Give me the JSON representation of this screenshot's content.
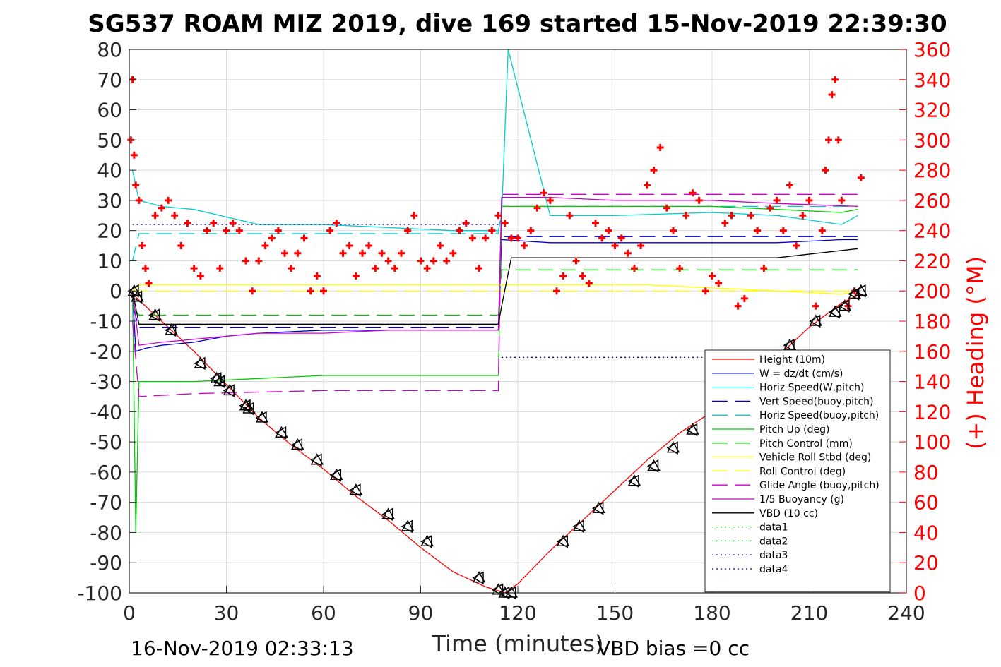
{
  "chart_data": {
    "type": "line",
    "title": "SG537 ROAM MIZ 2019, dive 169 started 15-Nov-2019 22:39:30",
    "xlabel": "Time (minutes)",
    "ylabel_right": "(+) Heading (°M)",
    "xlim": [
      0,
      240
    ],
    "ylim": [
      -100,
      80
    ],
    "ylim_right": [
      0,
      360
    ],
    "xticks": [
      "0",
      "30",
      "60",
      "90",
      "120",
      "150",
      "180",
      "210",
      "240"
    ],
    "yticks": [
      "80",
      "70",
      "60",
      "50",
      "40",
      "30",
      "20",
      "10",
      "0",
      "-10",
      "-20",
      "-30",
      "-40",
      "-50",
      "-60",
      "-70",
      "-80",
      "-90",
      "-100"
    ],
    "yticks_right": [
      "360",
      "340",
      "320",
      "300",
      "280",
      "260",
      "240",
      "220",
      "200",
      "180",
      "160",
      "140",
      "120",
      "100",
      "80",
      "60",
      "40",
      "20",
      "0"
    ],
    "footer_left": "16-Nov-2019 02:33:13",
    "footer_right": "VBD bias =0 cc",
    "grid": true,
    "legend_position": "bottom-right",
    "series": [
      {
        "name": "Height (10m)",
        "color": "#ff0000",
        "style": "solid",
        "x": [
          0,
          2,
          10,
          20,
          30,
          40,
          50,
          60,
          70,
          80,
          90,
          100,
          110,
          116,
          120,
          130,
          140,
          150,
          160,
          170,
          180,
          190,
          200,
          210,
          220,
          226
        ],
        "y": [
          0,
          -2,
          -10,
          -20,
          -31,
          -42,
          -51,
          -59,
          -68,
          -76,
          -85,
          -93,
          -98,
          -100,
          -97,
          -86,
          -76,
          -66,
          -56,
          -47,
          -40,
          -31,
          -22,
          -12,
          -4,
          -1
        ]
      },
      {
        "name": "W = dz/dt (cm/s)",
        "color": "#0000cc",
        "style": "solid",
        "x": [
          1,
          2,
          5,
          10,
          20,
          30,
          40,
          60,
          80,
          100,
          114,
          115,
          130,
          150,
          180,
          200,
          220,
          225
        ],
        "y": [
          0,
          -20,
          -19,
          -18,
          -17,
          -15,
          -14,
          -13,
          -13,
          -13,
          -13,
          17,
          16,
          16,
          16,
          16,
          17,
          17
        ]
      },
      {
        "name": "Horiz Speed(W,pitch)",
        "color": "#00cccc",
        "style": "solid",
        "x": [
          1,
          3,
          10,
          20,
          40,
          60,
          80,
          100,
          114,
          115,
          117,
          130,
          150,
          180,
          200,
          220,
          225
        ],
        "y": [
          40,
          30,
          28,
          27,
          22,
          22,
          21,
          20,
          20,
          25,
          80,
          25,
          25,
          26,
          25,
          22,
          25
        ]
      },
      {
        "name": "Vert Speed(buoy,pitch)",
        "color": "#0000cc",
        "style": "dashed",
        "x": [
          1,
          3,
          20,
          60,
          100,
          114,
          115,
          160,
          200,
          225
        ],
        "y": [
          -5,
          -12,
          -12,
          -12,
          -12,
          -12,
          18,
          18,
          18,
          18
        ]
      },
      {
        "name": "Horiz Speed(buoy,pitch)",
        "color": "#00cccc",
        "style": "dashed",
        "x": [
          1,
          3,
          20,
          60,
          100,
          114,
          115,
          160,
          200,
          225
        ],
        "y": [
          10,
          19,
          19,
          19,
          19,
          19,
          28,
          28,
          28,
          28
        ]
      },
      {
        "name": "Pitch Up (deg)",
        "color": "#00cc00",
        "style": "solid",
        "x": [
          1,
          2,
          3,
          10,
          20,
          40,
          60,
          80,
          100,
          114,
          115,
          130,
          150,
          180,
          200,
          220,
          225
        ],
        "y": [
          0,
          -80,
          -30,
          -30,
          -30,
          -29,
          -28,
          -28,
          -28,
          -28,
          28,
          28,
          28,
          28,
          27,
          26,
          27
        ]
      },
      {
        "name": "Pitch Control (mm)",
        "color": "#00cc00",
        "style": "dashed",
        "x": [
          1,
          3,
          60,
          114,
          115,
          160,
          225
        ],
        "y": [
          -5,
          -8,
          -8,
          -8,
          7,
          7,
          7
        ]
      },
      {
        "name": "Vehicle Roll Stbd (deg)",
        "color": "#ffff00",
        "style": "solid",
        "x": [
          1,
          3,
          20,
          40,
          60,
          80,
          100,
          114,
          115,
          140,
          160,
          180,
          200,
          220,
          225
        ],
        "y": [
          0,
          2,
          2,
          2,
          2,
          2,
          2,
          2,
          2,
          2,
          2,
          1,
          0,
          -1,
          0
        ]
      },
      {
        "name": "Roll Control (deg)",
        "color": "#ffff00",
        "style": "dashed",
        "x": [
          1,
          225
        ],
        "y": [
          0,
          0
        ]
      },
      {
        "name": "Glide Angle (buoy,pitch)",
        "color": "#cc00cc",
        "style": "dashed",
        "x": [
          1,
          3,
          20,
          60,
          100,
          114,
          115,
          160,
          200,
          225
        ],
        "y": [
          -10,
          -35,
          -34,
          -33,
          -33,
          -33,
          32,
          32,
          32,
          32
        ]
      },
      {
        "name": "1/5 Buoyancy (g)",
        "color": "#cc00cc",
        "style": "solid",
        "x": [
          1,
          3,
          10,
          20,
          40,
          60,
          80,
          100,
          114,
          115,
          130,
          150,
          180,
          200,
          225
        ],
        "y": [
          0,
          -18,
          -17,
          -16,
          -14,
          -14,
          -13,
          -13,
          -13,
          31,
          31,
          30,
          30,
          29,
          28
        ]
      },
      {
        "name": "VBD (10 cc)",
        "color": "#000000",
        "style": "solid",
        "x": [
          1,
          3,
          20,
          60,
          100,
          114,
          115,
          118,
          160,
          200,
          225
        ],
        "y": [
          0,
          -11,
          -11,
          -11,
          -11,
          -11,
          -5,
          11,
          11,
          11,
          14
        ]
      },
      {
        "name": "data1",
        "color": "#00cc00",
        "style": "dotted",
        "x": [],
        "y": []
      },
      {
        "name": "data2",
        "color": "#00cc00",
        "style": "dotted",
        "x": [],
        "y": []
      },
      {
        "name": "data3",
        "color": "#0000aa",
        "style": "dotted",
        "x": [
          1,
          115
        ],
        "y": [
          22,
          22
        ]
      },
      {
        "name": "data4",
        "color": "#0000aa",
        "style": "dotted",
        "x": [
          115,
          225
        ],
        "y": [
          -22,
          -22
        ]
      }
    ],
    "heading": {
      "axis": "right",
      "color": "#ff0000",
      "marker": "+",
      "x": [
        0.5,
        1,
        1.5,
        2,
        3,
        4,
        5,
        6,
        8,
        10,
        12,
        14,
        16,
        18,
        20,
        22,
        24,
        26,
        28,
        30,
        32,
        34,
        36,
        38,
        40,
        42,
        44,
        46,
        48,
        50,
        52,
        54,
        56,
        58,
        60,
        62,
        64,
        66,
        68,
        70,
        72,
        74,
        76,
        78,
        80,
        82,
        84,
        86,
        88,
        90,
        92,
        94,
        96,
        98,
        100,
        102,
        104,
        106,
        108,
        110,
        112,
        114,
        116,
        118,
        120,
        122,
        124,
        126,
        128,
        130,
        132,
        134,
        136,
        138,
        140,
        142,
        144,
        146,
        148,
        150,
        152,
        154,
        156,
        158,
        160,
        162,
        164,
        166,
        168,
        170,
        172,
        174,
        176,
        178,
        180,
        182,
        184,
        186,
        188,
        190,
        192,
        194,
        196,
        198,
        200,
        202,
        204,
        206,
        208,
        210,
        212,
        214,
        215,
        216,
        217,
        218,
        219,
        220,
        222,
        224,
        226
      ],
      "y": [
        300,
        340,
        290,
        270,
        260,
        230,
        215,
        205,
        250,
        255,
        260,
        250,
        230,
        245,
        215,
        210,
        240,
        245,
        215,
        240,
        245,
        240,
        220,
        200,
        220,
        230,
        235,
        240,
        225,
        215,
        225,
        235,
        200,
        210,
        200,
        240,
        245,
        225,
        230,
        210,
        225,
        230,
        215,
        225,
        220,
        215,
        225,
        240,
        250,
        220,
        215,
        220,
        230,
        220,
        225,
        240,
        245,
        235,
        215,
        235,
        240,
        250,
        245,
        235,
        235,
        230,
        240,
        255,
        265,
        260,
        200,
        210,
        250,
        220,
        210,
        205,
        245,
        235,
        240,
        230,
        235,
        225,
        215,
        230,
        270,
        280,
        295,
        255,
        240,
        215,
        250,
        265,
        260,
        200,
        210,
        205,
        245,
        250,
        190,
        195,
        250,
        240,
        215,
        255,
        260,
        240,
        270,
        230,
        250,
        260,
        190,
        240,
        280,
        300,
        330,
        340,
        300,
        260,
        190,
        200,
        275
      ]
    },
    "waypoints": {
      "color": "#000000",
      "x": [
        1.5,
        2.5,
        8,
        13,
        22,
        27,
        28,
        31,
        36,
        37,
        41,
        47,
        52,
        58,
        64,
        70,
        80,
        86,
        92,
        108,
        114,
        116,
        118,
        134,
        139,
        145,
        156,
        162,
        168,
        174,
        180,
        204,
        212,
        218,
        221,
        224,
        226
      ],
      "y": [
        0,
        -2,
        -8,
        -13,
        -24,
        -29,
        -30,
        -33,
        -38,
        -39,
        -42,
        -47,
        -51,
        -56,
        -61,
        -66,
        -74,
        -78,
        -83,
        -95,
        -99,
        -100,
        -100,
        -83,
        -78,
        -72,
        -63,
        -58,
        -52,
        -46,
        -40,
        -18,
        -10,
        -7,
        -5,
        -1,
        0
      ]
    }
  }
}
